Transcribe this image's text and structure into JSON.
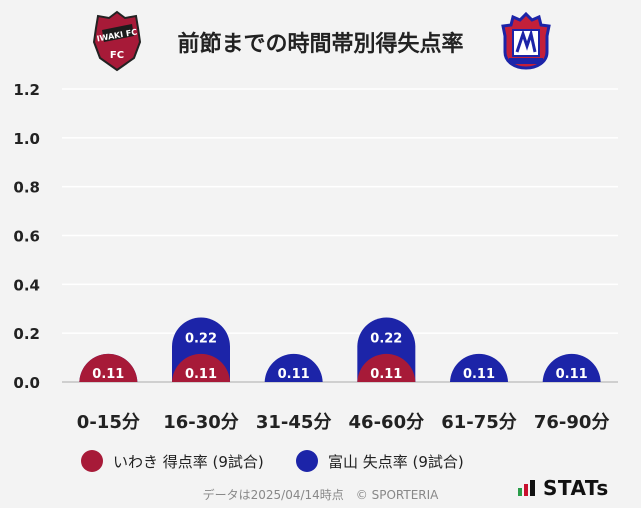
{
  "title": "前節までの時間帯別得失点率",
  "home_logo": {
    "icon": "iwaki-fc-crest-icon",
    "text": "IWAKI FC"
  },
  "away_logo": {
    "icon": "kataller-toyama-crest-icon"
  },
  "colors": {
    "home": "#a71a38",
    "away": "#1c24a8",
    "background": "#f3f3f3",
    "grid": "#ffffff"
  },
  "chart_data": {
    "type": "bar",
    "categories": [
      "0-15分",
      "16-30分",
      "31-45分",
      "46-60分",
      "61-75分",
      "76-90分"
    ],
    "series": [
      {
        "name": "いわき 得点率 (9試合)",
        "values": [
          0.11,
          0.11,
          0.0,
          0.11,
          0.0,
          0.0
        ]
      },
      {
        "name": "富山 失点率 (9試合)",
        "values": [
          0.11,
          0.22,
          0.11,
          0.22,
          0.11,
          0.11
        ]
      }
    ],
    "ylim": [
      0,
      1.2
    ],
    "yticks": [
      "0.0",
      "0.2",
      "0.4",
      "0.6",
      "0.8",
      "1.0",
      "1.2"
    ],
    "grid": true,
    "legend_position": "bottom"
  },
  "footer": "データは2025/04/14時点　© SPORTERIA",
  "brand": "STATs"
}
